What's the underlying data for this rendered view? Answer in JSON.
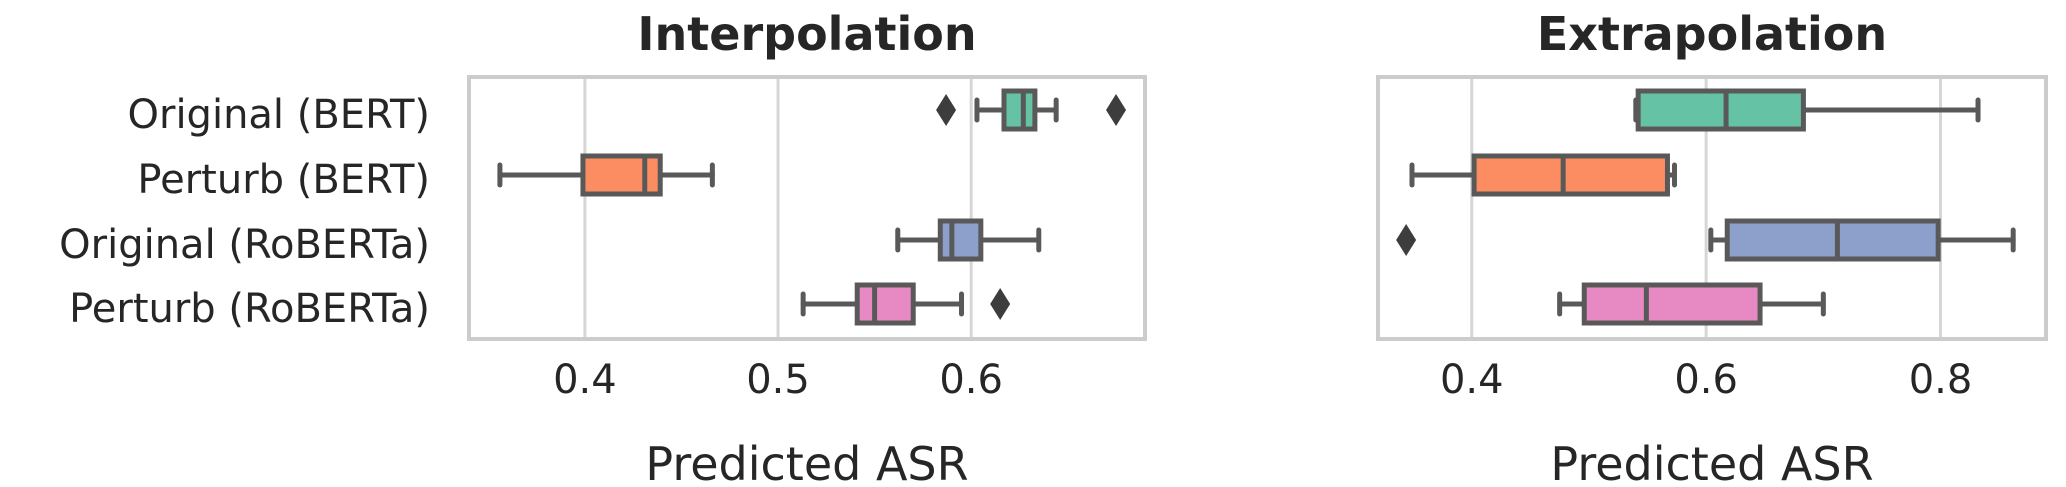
{
  "chart_data": [
    {
      "type": "box",
      "title": "Interpolation",
      "xlabel": "Predicted ASR",
      "ylabel": "",
      "xlim": [
        0.34,
        0.69
      ],
      "xticks": [
        0.4,
        0.5,
        0.6
      ],
      "tick_labels": [
        "0.4",
        "0.5",
        "0.6"
      ],
      "grid": true,
      "categories": [
        "Original (BERT)",
        "Perturb (BERT)",
        "Original (RoBERTa)",
        "Perturb (RoBERTa)"
      ],
      "boxes": [
        {
          "category": "Original (BERT)",
          "color": "#66c2a5",
          "whisker_low": 0.603,
          "q1": 0.617,
          "median": 0.627,
          "q3": 0.633,
          "whisker_high": 0.644,
          "outliers": [
            0.587,
            0.675
          ]
        },
        {
          "category": "Perturb (BERT)",
          "color": "#fc8d62",
          "whisker_low": 0.356,
          "q1": 0.399,
          "median": 0.431,
          "q3": 0.439,
          "whisker_high": 0.466,
          "outliers": []
        },
        {
          "category": "Original (RoBERTa)",
          "color": "#8da0cb",
          "whisker_low": 0.562,
          "q1": 0.584,
          "median": 0.59,
          "q3": 0.605,
          "whisker_high": 0.635,
          "outliers": []
        },
        {
          "category": "Perturb (RoBERTa)",
          "color": "#e78ac3",
          "whisker_low": 0.513,
          "q1": 0.541,
          "median": 0.55,
          "q3": 0.57,
          "whisker_high": 0.595,
          "outliers": [
            0.615
          ]
        }
      ]
    },
    {
      "type": "box",
      "title": "Extrapolation",
      "xlabel": "Predicted ASR",
      "ylabel": "",
      "xlim": [
        0.32,
        0.89
      ],
      "xticks": [
        0.4,
        0.6,
        0.8
      ],
      "tick_labels": [
        "0.4",
        "0.6",
        "0.8"
      ],
      "grid": true,
      "categories": [
        "Original (BERT)",
        "Perturb (BERT)",
        "Original (RoBERTa)",
        "Perturb (RoBERTa)"
      ],
      "boxes": [
        {
          "category": "Original (BERT)",
          "color": "#66c2a5",
          "whisker_low": 0.54,
          "q1": 0.542,
          "median": 0.617,
          "q3": 0.683,
          "whisker_high": 0.832,
          "outliers": []
        },
        {
          "category": "Perturb (BERT)",
          "color": "#fc8d62",
          "whisker_low": 0.349,
          "q1": 0.402,
          "median": 0.478,
          "q3": 0.567,
          "whisker_high": 0.573,
          "outliers": []
        },
        {
          "category": "Original (RoBERTa)",
          "color": "#8da0cb",
          "whisker_low": 0.604,
          "q1": 0.618,
          "median": 0.712,
          "q3": 0.798,
          "whisker_high": 0.862,
          "outliers": [
            0.344
          ]
        },
        {
          "category": "Perturb (RoBERTa)",
          "color": "#e78ac3",
          "whisker_low": 0.475,
          "q1": 0.496,
          "median": 0.549,
          "q3": 0.646,
          "whisker_high": 0.7,
          "outliers": []
        }
      ]
    }
  ]
}
